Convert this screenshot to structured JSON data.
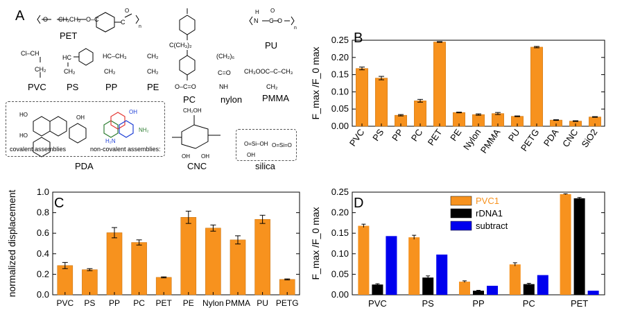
{
  "panels": {
    "A": {
      "letter": "A",
      "polymers": [
        "PET",
        "PU",
        "PVC",
        "PS",
        "PP",
        "PE",
        "PC",
        "nylon",
        "PMMA",
        "PDA",
        "CNC",
        "silica"
      ],
      "pda_labels": {
        "covalent": "covalent assemblies",
        "noncovalent": "non-covalent assemblies:"
      },
      "fragments": {
        "pet": "(O–CH₂–CH₂–O–C(=O)–C₆H₄–C(=O))ₙ",
        "pu": "(N(H)–C(=O)–O)ₙ",
        "pvc": "Cl–CH / CH₂",
        "ps": "HC–Ph / CH₂",
        "pp": "HC–CH₃ / CH₂",
        "pe": "CH₂ / CH₂",
        "pmma": "CH₃OOC–C(CH₃) / CH₂",
        "nylon": "(CH₂)₆ / C=O / NH",
        "pc_top": "C(CH₃)₂",
        "pc_bottom": "O–C=O",
        "cnc": "CH₂OH",
        "silica1": "O=Si(OH)–OH",
        "silica2": "O=Si=O"
      }
    },
    "B": {
      "letter": "B"
    },
    "C": {
      "letter": "C"
    },
    "D": {
      "letter": "D"
    }
  },
  "chart_data": [
    {
      "id": "B",
      "type": "bar",
      "ylabel": "F_max /F_0 max",
      "categories": [
        "PVC",
        "PS",
        "PP",
        "PC",
        "PET",
        "PE",
        "Nylon",
        "PMMA",
        "PU",
        "PETG",
        "PDA",
        "CNC",
        "SiO2"
      ],
      "values": [
        0.168,
        0.14,
        0.032,
        0.074,
        0.245,
        0.04,
        0.034,
        0.037,
        0.029,
        0.23,
        0.018,
        0.015,
        0.027
      ],
      "errors": [
        0.004,
        0.005,
        0.002,
        0.004,
        0.001,
        0.001,
        0.002,
        0.003,
        0.001,
        0.002,
        0.001,
        0.001,
        0.001
      ],
      "ylim": [
        0,
        0.25
      ],
      "yticks": [
        "0.00",
        "0.05",
        "0.10",
        "0.15",
        "0.20",
        "0.25"
      ],
      "color": "#f7921e"
    },
    {
      "id": "C",
      "type": "bar",
      "ylabel": "normalized displacement",
      "categories": [
        "PVC",
        "PS",
        "PP",
        "PC",
        "PET",
        "PE",
        "Nylon",
        "PMMA",
        "PU",
        "PETG"
      ],
      "values": [
        0.285,
        0.245,
        0.605,
        0.51,
        0.17,
        0.755,
        0.65,
        0.535,
        0.735,
        0.15
      ],
      "errors": [
        0.03,
        0.01,
        0.05,
        0.025,
        0.005,
        0.06,
        0.03,
        0.04,
        0.04,
        0.005
      ],
      "ylim": [
        0,
        1.0
      ],
      "yticks": [
        "0.0",
        "0.2",
        "0.4",
        "0.6",
        "0.8",
        "1.0"
      ],
      "color": "#f7921e"
    },
    {
      "id": "D",
      "type": "bar",
      "ylabel": "F_max /F_0 max",
      "categories": [
        "PVC",
        "PS",
        "PP",
        "PC",
        "PET"
      ],
      "series": [
        {
          "name": "PVC1",
          "color": "#f7921e",
          "values": [
            0.168,
            0.14,
            0.032,
            0.074,
            0.245
          ],
          "errors": [
            0.004,
            0.005,
            0.002,
            0.004,
            0.001
          ]
        },
        {
          "name": "rDNA1",
          "color": "#000000",
          "values": [
            0.025,
            0.042,
            0.01,
            0.026,
            0.235
          ],
          "errors": [
            0.002,
            0.004,
            0.001,
            0.002,
            0.002
          ]
        },
        {
          "name": "subtract",
          "color": "#0000ee",
          "values": [
            0.143,
            0.098,
            0.022,
            0.048,
            0.01
          ],
          "errors": [
            0,
            0,
            0,
            0,
            0
          ]
        }
      ],
      "ylim": [
        0,
        0.25
      ],
      "yticks": [
        "0.00",
        "0.05",
        "0.10",
        "0.15",
        "0.20",
        "0.25"
      ],
      "legend_position": "top-right"
    }
  ]
}
